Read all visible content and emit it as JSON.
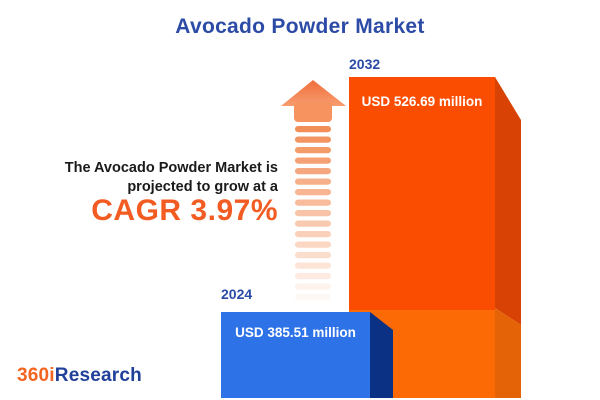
{
  "title": "Avocado Powder Market",
  "description": {
    "line1": "The Avocado Powder Market is",
    "line2": "projected to grow at a",
    "cagr": "CAGR 3.97%"
  },
  "chart_data": {
    "type": "bar",
    "title": "Avocado Powder Market",
    "categories": [
      "2024",
      "2032"
    ],
    "values": [
      385.51,
      526.69
    ],
    "unit": "USD million",
    "value_labels": [
      "USD 385.51 million",
      "USD 526.69 million"
    ],
    "cagr_percent": 3.97,
    "legend": "none",
    "grid": false,
    "bar_colors": {
      "2024": "#2e72e8",
      "2032": "#fb4d02"
    }
  },
  "arrow": {
    "name": "growth-arrow",
    "stripe_count": 17
  },
  "logo": {
    "part1": "360i",
    "part2": "Research"
  },
  "colors": {
    "title_blue": "#2b4ba6",
    "text_dark": "#1a1a1a",
    "accent_orange": "#f25c22",
    "bar_2024_face": "#2e72e8",
    "bar_2024_side": "#0a3183",
    "bar_2032_face_top": "#fb4d02",
    "bar_2032_face_bottom": "#fc6a05",
    "bar_2032_side_top": "#d84305",
    "bar_2032_side_bottom": "#e56307",
    "arrow_head_top": "#ef6f3d",
    "arrow_head_bottom": "#f89c6e",
    "arrow_stripe": "#f28a52",
    "logo_orange": "#f26522",
    "logo_blue": "#21409a"
  }
}
